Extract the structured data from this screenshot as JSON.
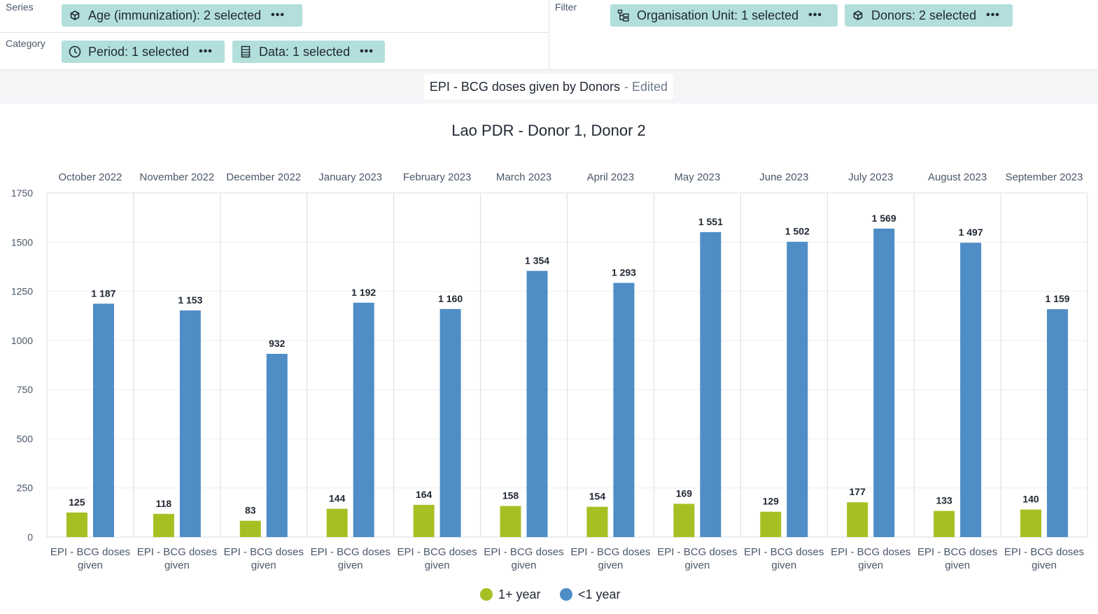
{
  "layout": {
    "series_label": "Series",
    "category_label": "Category",
    "filter_label": "Filter",
    "chips": {
      "age": "Age (immunization): 2 selected",
      "period": "Period: 1 selected",
      "data": "Data: 1 selected",
      "org_unit": "Organisation Unit: 1 selected",
      "donors": "Donors: 2 selected"
    },
    "chip_menu": "•••"
  },
  "visualization": {
    "name": "EPI - BCG doses given by Donors",
    "status": "- Edited"
  },
  "colors": {
    "series_1": "#a8bf24",
    "series_2": "#4f8dc6",
    "chip_bg": "#b2dfdb"
  },
  "chart_data": {
    "type": "bar",
    "title": "Lao PDR - Donor 1, Donor 2",
    "groups": [
      "October 2022",
      "November 2022",
      "December 2022",
      "January 2023",
      "February 2023",
      "March 2023",
      "April 2023",
      "May 2023",
      "June 2023",
      "July 2023",
      "August 2023",
      "September 2023"
    ],
    "category_label": "EPI - BCG doses given",
    "series": [
      {
        "name": "1+ year",
        "values": [
          125,
          118,
          83,
          144,
          164,
          158,
          154,
          169,
          129,
          177,
          133,
          140
        ]
      },
      {
        "name": "<1 year",
        "values": [
          1187,
          1153,
          932,
          1192,
          1160,
          1354,
          1293,
          1551,
          1502,
          1569,
          1497,
          1159
        ]
      }
    ],
    "data_labels": {
      "1+ year": [
        "125",
        "118",
        "83",
        "144",
        "164",
        "158",
        "154",
        "169",
        "129",
        "177",
        "133",
        "140"
      ],
      "<1 year": [
        "1 187",
        "1 153",
        "932",
        "1 192",
        "1 160",
        "1 354",
        "1 293",
        "1 551",
        "1 502",
        "1 569",
        "1 497",
        "1 159"
      ]
    },
    "ylim": [
      0,
      1750
    ],
    "yticks": [
      0,
      250,
      500,
      750,
      1000,
      1250,
      1500,
      1750
    ],
    "legend_position": "bottom",
    "grid": true
  }
}
